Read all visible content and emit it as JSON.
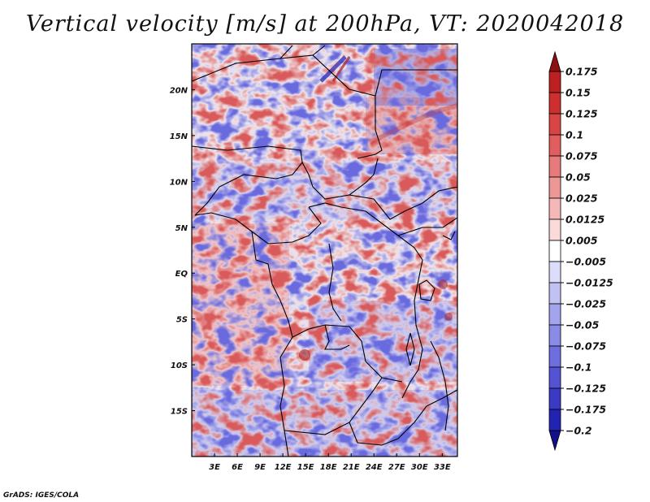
{
  "title": "Vertical velocity [m/s] at 200hPa, VT: 2020042018",
  "footer": "GrADS: IGES/COLA",
  "map": {
    "lon_range_deg": [
      0,
      35
    ],
    "lat_range_deg": [
      -20,
      25
    ],
    "x_tick_labels": [
      "3E",
      "6E",
      "9E",
      "12E",
      "15E",
      "18E",
      "21E",
      "24E",
      "27E",
      "30E",
      "33E"
    ],
    "y_tick_labels": [
      "20N",
      "15N",
      "10N",
      "5N",
      "EQ",
      "5S",
      "10S",
      "15S"
    ],
    "variable": "Vertical velocity",
    "units": "m/s",
    "level": "200hPa",
    "valid_time": "2020042018"
  },
  "colorbar": {
    "labels": [
      "0.175",
      "0.15",
      "0.125",
      "0.1",
      "0.075",
      "0.05",
      "0.025",
      "0.0125",
      "0.005",
      "−0.005",
      "−0.0125",
      "−0.025",
      "−0.05",
      "−0.075",
      "−0.1",
      "−0.125",
      "−0.175",
      "−0.2"
    ],
    "colors": [
      "#a51616",
      "#bd2020",
      "#cd2f2f",
      "#d94545",
      "#e05e5e",
      "#e77a7a",
      "#ee9797",
      "#f4b8b8",
      "#fbdada",
      "#ffffff",
      "#dcdcfb",
      "#c1c1f4",
      "#a3a3ee",
      "#8a8ae7",
      "#6e6ede",
      "#5353d3",
      "#3a3ac5",
      "#2323b3",
      "#1414a0"
    ],
    "tip_top_color": "#8e0f0f",
    "tip_bottom_color": "#10108a"
  }
}
